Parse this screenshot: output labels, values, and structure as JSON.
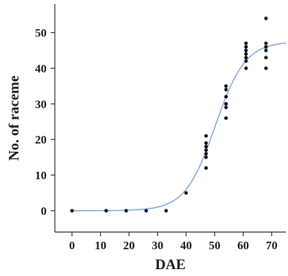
{
  "chart_data": {
    "type": "scatter",
    "title": "",
    "xlabel": "DAE",
    "ylabel": "No. of raceme",
    "xlim": [
      -6,
      75
    ],
    "ylim": [
      -6,
      58
    ],
    "xticks": [
      0,
      10,
      20,
      30,
      40,
      50,
      60,
      70
    ],
    "yticks": [
      0,
      10,
      20,
      30,
      40,
      50
    ],
    "grid": false,
    "legend": "none",
    "colors": {
      "points": "#111111",
      "fit_line": "#7ea6dc",
      "axes": "#222222"
    },
    "series": [
      {
        "kind": "scatter",
        "points": [
          [
            0,
            0
          ],
          [
            12,
            0
          ],
          [
            19,
            0
          ],
          [
            26,
            0
          ],
          [
            33,
            0
          ],
          [
            40,
            5
          ],
          [
            47,
            12
          ],
          [
            47,
            15
          ],
          [
            47,
            16
          ],
          [
            47,
            17
          ],
          [
            47,
            18
          ],
          [
            47,
            19
          ],
          [
            47,
            21
          ],
          [
            54,
            26
          ],
          [
            54,
            29
          ],
          [
            54,
            30
          ],
          [
            54,
            32
          ],
          [
            54,
            34
          ],
          [
            54,
            35
          ],
          [
            61,
            40
          ],
          [
            61,
            42
          ],
          [
            61,
            43
          ],
          [
            61,
            44
          ],
          [
            61,
            45
          ],
          [
            61,
            46
          ],
          [
            61,
            47
          ],
          [
            68,
            40
          ],
          [
            68,
            43
          ],
          [
            68,
            45
          ],
          [
            68,
            46
          ],
          [
            68,
            47
          ],
          [
            68,
            54
          ]
        ]
      },
      {
        "kind": "fit",
        "model": "logistic",
        "params": {
          "K": 47.5,
          "r": 0.19,
          "x0": 50.2
        }
      }
    ]
  }
}
